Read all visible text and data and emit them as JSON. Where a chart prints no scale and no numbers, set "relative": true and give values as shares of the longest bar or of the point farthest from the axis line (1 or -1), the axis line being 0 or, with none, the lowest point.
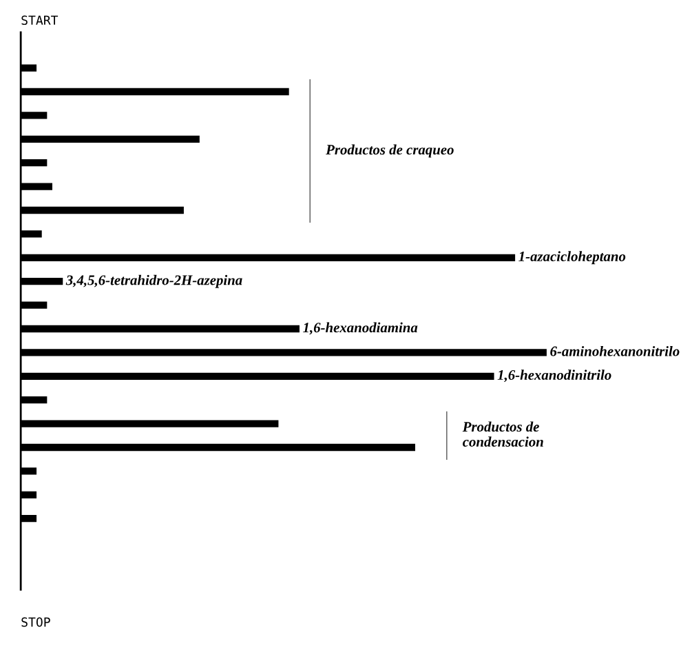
{
  "chart_data": {
    "type": "bar",
    "orientation": "horizontal",
    "relative": true,
    "categories": [
      null,
      null,
      null,
      null,
      null,
      null,
      null,
      null,
      null,
      null,
      null,
      null,
      null,
      null,
      null,
      null,
      null,
      null,
      null,
      null
    ],
    "values": [
      0.03,
      0.51,
      0.05,
      0.34,
      0.05,
      0.06,
      0.31,
      0.04,
      0.94,
      0.08,
      0.05,
      0.53,
      1.0,
      0.9,
      0.05,
      0.49,
      0.75,
      0.03,
      0.03,
      0.03
    ],
    "color": "#000000",
    "annotations": [
      "START",
      "STOP",
      "Productos de craqueo",
      "Productos de\ncondensacion",
      "1-azacicloheptano",
      "3,4,5,6-tetrahidro-2H-azepina",
      "1,6-hexanodiamina",
      "6-aminohexanonitrilo",
      "1,6-hexanodinitrilo"
    ]
  }
}
